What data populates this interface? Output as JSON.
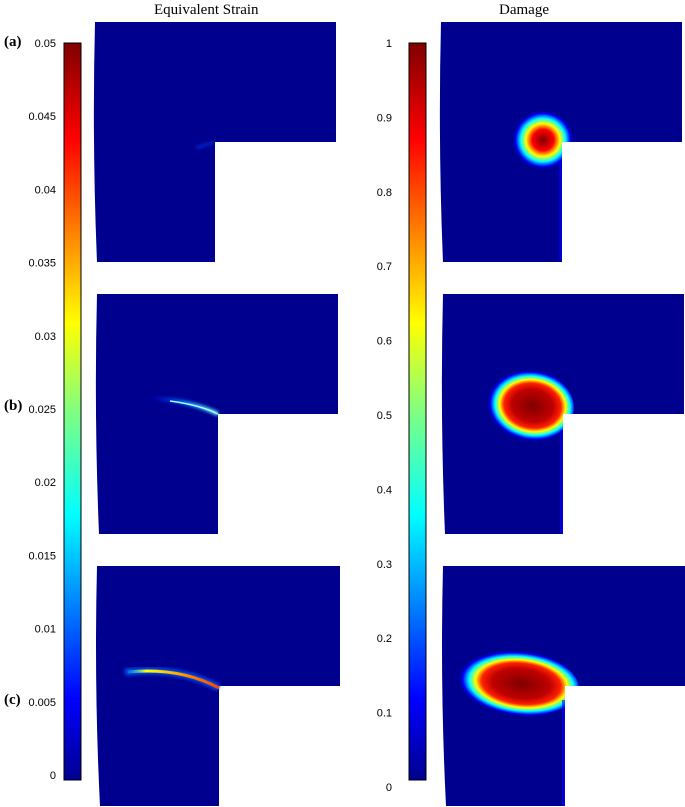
{
  "titles": {
    "left": "Equivalent Strain",
    "right": "Damage"
  },
  "rows": [
    {
      "label": "(a)"
    },
    {
      "label": "(b)"
    },
    {
      "label": "(c)"
    }
  ],
  "colorbars": {
    "strain": {
      "min": 0,
      "max": 0.05,
      "ticks": [
        "0.05",
        "0.045",
        "0.04",
        "0.035",
        "0.03",
        "0.025",
        "0.02",
        "0.015",
        "0.01",
        "0.005",
        "0"
      ]
    },
    "damage": {
      "min": 0,
      "max": 1,
      "ticks": [
        "1",
        "0.9",
        "0.8",
        "0.7",
        "0.6",
        "0.5",
        "0.4",
        "0.3",
        "0.2",
        "0.1",
        "0"
      ]
    }
  },
  "colors": {
    "background_field": "#00008f",
    "colormap": "jet"
  }
}
